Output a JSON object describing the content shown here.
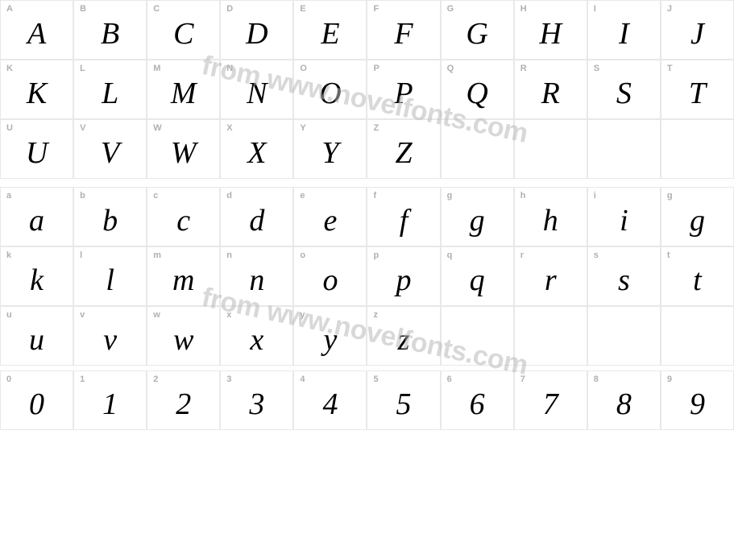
{
  "watermark_text": "from www.novelfonts.com",
  "colors": {
    "background": "#ffffff",
    "border": "#e8e8e8",
    "key_label": "#b0b0b0",
    "glyph": "#000000",
    "watermark": "#b9b9b9"
  },
  "sections": {
    "upper": {
      "rows": 3,
      "cols": 10,
      "cells": [
        {
          "key": "A",
          "glyph": "A"
        },
        {
          "key": "B",
          "glyph": "B"
        },
        {
          "key": "C",
          "glyph": "C"
        },
        {
          "key": "D",
          "glyph": "D"
        },
        {
          "key": "E",
          "glyph": "E"
        },
        {
          "key": "F",
          "glyph": "F"
        },
        {
          "key": "G",
          "glyph": "G"
        },
        {
          "key": "H",
          "glyph": "H"
        },
        {
          "key": "I",
          "glyph": "I"
        },
        {
          "key": "J",
          "glyph": "J"
        },
        {
          "key": "K",
          "glyph": "K"
        },
        {
          "key": "L",
          "glyph": "L"
        },
        {
          "key": "M",
          "glyph": "M"
        },
        {
          "key": "N",
          "glyph": "N"
        },
        {
          "key": "O",
          "glyph": "O"
        },
        {
          "key": "P",
          "glyph": "P"
        },
        {
          "key": "Q",
          "glyph": "Q"
        },
        {
          "key": "R",
          "glyph": "R"
        },
        {
          "key": "S",
          "glyph": "S"
        },
        {
          "key": "T",
          "glyph": "T"
        },
        {
          "key": "U",
          "glyph": "U"
        },
        {
          "key": "V",
          "glyph": "V"
        },
        {
          "key": "W",
          "glyph": "W"
        },
        {
          "key": "X",
          "glyph": "X"
        },
        {
          "key": "Y",
          "glyph": "Y"
        },
        {
          "key": "Z",
          "glyph": "Z"
        },
        {
          "key": "",
          "glyph": ""
        },
        {
          "key": "",
          "glyph": ""
        },
        {
          "key": "",
          "glyph": ""
        },
        {
          "key": "",
          "glyph": ""
        }
      ]
    },
    "lower": {
      "rows": 3,
      "cols": 10,
      "cells": [
        {
          "key": "a",
          "glyph": "a"
        },
        {
          "key": "b",
          "glyph": "b"
        },
        {
          "key": "c",
          "glyph": "c"
        },
        {
          "key": "d",
          "glyph": "d"
        },
        {
          "key": "e",
          "glyph": "e"
        },
        {
          "key": "f",
          "glyph": "f"
        },
        {
          "key": "g",
          "glyph": "g"
        },
        {
          "key": "h",
          "glyph": "h"
        },
        {
          "key": "i",
          "glyph": "i"
        },
        {
          "key": "g",
          "glyph": "g"
        },
        {
          "key": "k",
          "glyph": "k"
        },
        {
          "key": "l",
          "glyph": "l"
        },
        {
          "key": "m",
          "glyph": "m"
        },
        {
          "key": "n",
          "glyph": "n"
        },
        {
          "key": "o",
          "glyph": "o"
        },
        {
          "key": "p",
          "glyph": "p"
        },
        {
          "key": "q",
          "glyph": "q"
        },
        {
          "key": "r",
          "glyph": "r"
        },
        {
          "key": "s",
          "glyph": "s"
        },
        {
          "key": "t",
          "glyph": "t"
        },
        {
          "key": "u",
          "glyph": "u"
        },
        {
          "key": "v",
          "glyph": "v"
        },
        {
          "key": "w",
          "glyph": "w"
        },
        {
          "key": "x",
          "glyph": "x"
        },
        {
          "key": "y",
          "glyph": "y"
        },
        {
          "key": "z",
          "glyph": "z"
        },
        {
          "key": "",
          "glyph": ""
        },
        {
          "key": "",
          "glyph": ""
        },
        {
          "key": "",
          "glyph": ""
        },
        {
          "key": "",
          "glyph": ""
        }
      ]
    },
    "digits": {
      "rows": 1,
      "cols": 10,
      "cells": [
        {
          "key": "0",
          "glyph": "0"
        },
        {
          "key": "1",
          "glyph": "1"
        },
        {
          "key": "2",
          "glyph": "2"
        },
        {
          "key": "3",
          "glyph": "3"
        },
        {
          "key": "4",
          "glyph": "4"
        },
        {
          "key": "5",
          "glyph": "5"
        },
        {
          "key": "6",
          "glyph": "6"
        },
        {
          "key": "7",
          "glyph": "7"
        },
        {
          "key": "8",
          "glyph": "8"
        },
        {
          "key": "9",
          "glyph": "9"
        }
      ]
    }
  }
}
